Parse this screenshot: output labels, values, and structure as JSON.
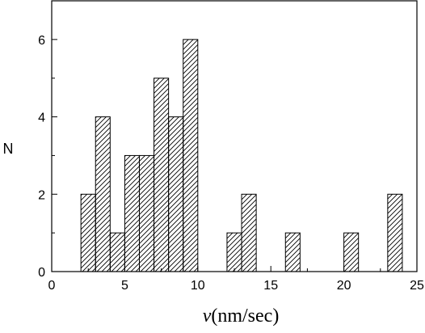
{
  "chart_data": {
    "type": "bar",
    "title": "",
    "xlabel_symbol": "ν",
    "xlabel_unit": "(nm/sec)",
    "ylabel": "N",
    "xlim": [
      0,
      25
    ],
    "ylim": [
      0,
      7
    ],
    "x_ticks": [
      "0",
      "5",
      "10",
      "15",
      "20",
      "25"
    ],
    "y_ticks": [
      "0",
      "2",
      "4",
      "6"
    ],
    "bin_width": 1,
    "bins": [
      {
        "x_start": 2,
        "x_end": 3,
        "count": 2
      },
      {
        "x_start": 3,
        "x_end": 4,
        "count": 4
      },
      {
        "x_start": 4,
        "x_end": 5,
        "count": 1
      },
      {
        "x_start": 5,
        "x_end": 6,
        "count": 3
      },
      {
        "x_start": 6,
        "x_end": 7,
        "count": 3
      },
      {
        "x_start": 7,
        "x_end": 8,
        "count": 5
      },
      {
        "x_start": 8,
        "x_end": 9,
        "count": 4
      },
      {
        "x_start": 9,
        "x_end": 10,
        "count": 6
      },
      {
        "x_start": 12,
        "x_end": 13,
        "count": 1
      },
      {
        "x_start": 13,
        "x_end": 14,
        "count": 2
      },
      {
        "x_start": 16,
        "x_end": 17,
        "count": 1
      },
      {
        "x_start": 20,
        "x_end": 21,
        "count": 1
      },
      {
        "x_start": 23,
        "x_end": 24,
        "count": 2
      }
    ],
    "grid": false,
    "bar_fill": "hatched",
    "bar_color": "#000000",
    "background": "#ffffff"
  }
}
